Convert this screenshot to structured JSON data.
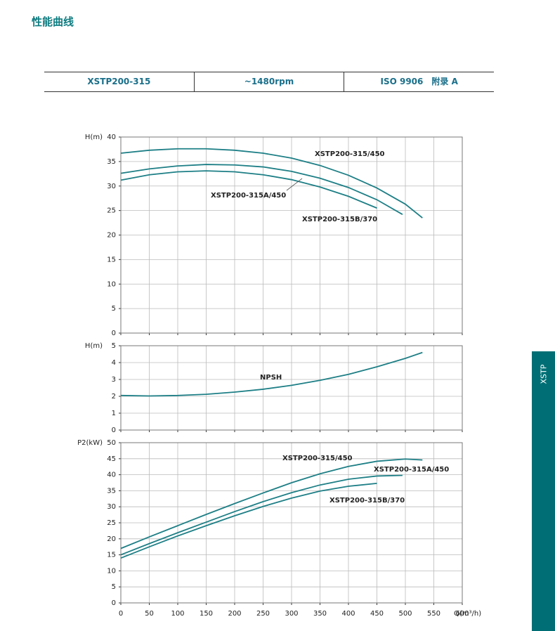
{
  "header": {
    "title": "性能曲线",
    "table": [
      "XSTP200-315",
      "~1480rpm",
      "ISO 9906　附录 A"
    ]
  },
  "side_tab": "XSTP",
  "chart_data": [
    {
      "type": "line",
      "y_label": "H(m)",
      "grid": true,
      "xlim": [
        0,
        600
      ],
      "xticks": [
        0,
        50,
        100,
        150,
        200,
        250,
        300,
        350,
        400,
        450,
        500,
        550,
        600
      ],
      "ylim": [
        0,
        40
      ],
      "yticks": [
        0,
        5,
        10,
        15,
        20,
        25,
        30,
        35,
        40
      ],
      "series": [
        {
          "name": "XSTP200-315/450",
          "color": "#1d7f86",
          "x": [
            0,
            50,
            100,
            150,
            200,
            250,
            300,
            350,
            400,
            450,
            500,
            530
          ],
          "values": [
            36.7,
            37.3,
            37.6,
            37.6,
            37.3,
            36.7,
            35.7,
            34.2,
            32.2,
            29.6,
            26.3,
            23.5
          ]
        },
        {
          "name": "XSTP200-315A/450",
          "color": "#1d7f86",
          "x": [
            0,
            50,
            100,
            150,
            200,
            250,
            300,
            350,
            400,
            450,
            495
          ],
          "values": [
            32.6,
            33.5,
            34.1,
            34.4,
            34.3,
            33.9,
            33.0,
            31.6,
            29.7,
            27.2,
            24.2
          ]
        },
        {
          "name": "XSTP200-315B/370",
          "color": "#1d7f86",
          "x": [
            0,
            50,
            100,
            150,
            200,
            250,
            300,
            350,
            400,
            450
          ],
          "values": [
            31.2,
            32.3,
            32.9,
            33.1,
            32.9,
            32.3,
            31.3,
            29.8,
            27.9,
            25.5
          ]
        }
      ]
    },
    {
      "type": "line",
      "y_label": "H(m)",
      "grid": true,
      "xlim": [
        0,
        600
      ],
      "xticks": [
        0,
        50,
        100,
        150,
        200,
        250,
        300,
        350,
        400,
        450,
        500,
        550,
        600
      ],
      "ylim": [
        0,
        5
      ],
      "yticks": [
        0,
        1,
        2,
        3,
        4,
        5
      ],
      "series": [
        {
          "name": "NPSH",
          "color": "#1d7f86",
          "x": [
            0,
            50,
            100,
            150,
            200,
            250,
            300,
            350,
            400,
            450,
            500,
            530
          ],
          "values": [
            2.05,
            2.02,
            2.05,
            2.12,
            2.25,
            2.42,
            2.65,
            2.95,
            3.3,
            3.75,
            4.25,
            4.6
          ]
        }
      ]
    },
    {
      "type": "line",
      "y_label": "P2(kW)",
      "x_label": "Q(m³/h)",
      "grid": true,
      "xlim": [
        0,
        600
      ],
      "xticks": [
        0,
        50,
        100,
        150,
        200,
        250,
        300,
        350,
        400,
        450,
        500,
        550,
        600
      ],
      "ylim": [
        0,
        50
      ],
      "yticks": [
        0,
        5,
        10,
        15,
        20,
        25,
        30,
        35,
        40,
        45,
        50
      ],
      "series": [
        {
          "name": "XSTP200-315/450",
          "color": "#1d7f86",
          "x": [
            0,
            50,
            100,
            150,
            200,
            250,
            300,
            350,
            400,
            450,
            500,
            530
          ],
          "values": [
            17.0,
            20.6,
            24.1,
            27.6,
            31.0,
            34.3,
            37.5,
            40.3,
            42.6,
            44.2,
            44.9,
            44.6
          ]
        },
        {
          "name": "XSTP200-315A/450",
          "color": "#1d7f86",
          "x": [
            0,
            50,
            100,
            150,
            200,
            250,
            300,
            350,
            400,
            450,
            495
          ],
          "values": [
            15.0,
            18.5,
            21.9,
            25.2,
            28.5,
            31.6,
            34.4,
            36.8,
            38.6,
            39.6,
            39.8
          ]
        },
        {
          "name": "XSTP200-315B/370",
          "color": "#1d7f86",
          "x": [
            0,
            50,
            100,
            150,
            200,
            250,
            300,
            350,
            400,
            450
          ],
          "values": [
            14.0,
            17.5,
            20.9,
            24.1,
            27.2,
            30.1,
            32.7,
            34.9,
            36.4,
            37.3
          ]
        }
      ]
    }
  ]
}
